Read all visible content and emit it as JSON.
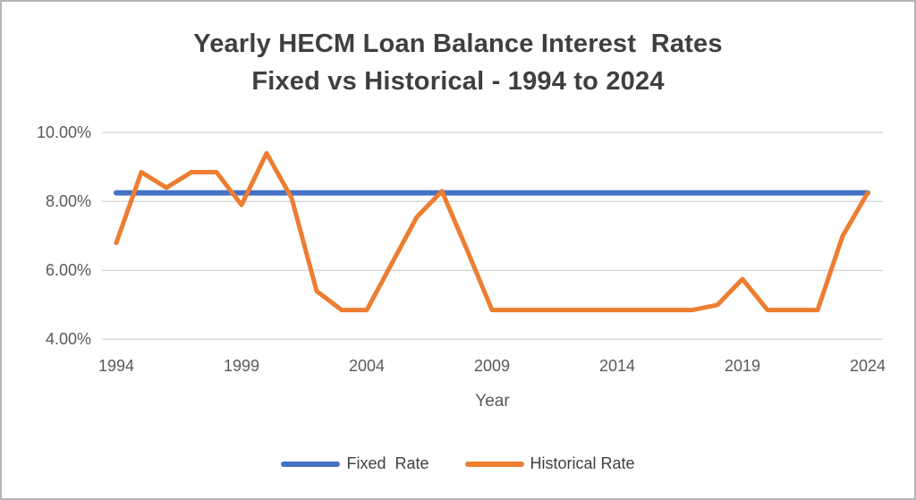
{
  "window": {
    "background": "#ffffff",
    "border_color": "#b6b6b6"
  },
  "chart_data": {
    "type": "line",
    "title": "Yearly HECM Loan Balance Interest  Rates",
    "subtitle": "Fixed vs Historical - 1994 to 2024",
    "xlabel": "Year",
    "x_tick_years": [
      1994,
      1999,
      2004,
      2009,
      2014,
      2019,
      2024
    ],
    "x_tick_labels": [
      "1994",
      "1999",
      "2004",
      "2009",
      "2014",
      "2019",
      "2024"
    ],
    "y_tick_values": [
      10,
      8,
      6,
      4
    ],
    "y_tick_labels": [
      "10.00%",
      "8.00%",
      "6.00%",
      "4.00%"
    ],
    "ylim": [
      4,
      10
    ],
    "xlim": [
      1994,
      2024
    ],
    "grid": "horizontal",
    "legend_position": "bottom",
    "x": [
      1994,
      1995,
      1996,
      1997,
      1998,
      1999,
      2000,
      2001,
      2002,
      2003,
      2004,
      2005,
      2006,
      2007,
      2008,
      2009,
      2010,
      2011,
      2012,
      2013,
      2014,
      2015,
      2016,
      2017,
      2018,
      2019,
      2020,
      2021,
      2022,
      2023,
      2024
    ],
    "series": [
      {
        "name": "Fixed  Rate",
        "color": "#4472C4",
        "stroke_width": 6,
        "values": [
          8.25,
          8.25,
          8.25,
          8.25,
          8.25,
          8.25,
          8.25,
          8.25,
          8.25,
          8.25,
          8.25,
          8.25,
          8.25,
          8.25,
          8.25,
          8.25,
          8.25,
          8.25,
          8.25,
          8.25,
          8.25,
          8.25,
          8.25,
          8.25,
          8.25,
          8.25,
          8.25,
          8.25,
          8.25,
          8.25,
          8.25
        ]
      },
      {
        "name": "Historical Rate",
        "color": "#ED7D31",
        "stroke_width": 5,
        "values": [
          6.8,
          8.85,
          8.4,
          8.85,
          8.85,
          7.9,
          9.4,
          8.1,
          5.4,
          4.85,
          4.85,
          6.2,
          7.55,
          8.3,
          6.6,
          4.85,
          4.85,
          4.85,
          4.85,
          4.85,
          4.85,
          4.85,
          4.85,
          4.85,
          5.0,
          5.75,
          4.85,
          4.85,
          4.85,
          7.0,
          8.25
        ]
      }
    ],
    "colors": {
      "gridline": "#D9D9D9",
      "title_text": "#3f3f3f",
      "axis_text": "#595959",
      "legend_text": "#404040"
    }
  }
}
